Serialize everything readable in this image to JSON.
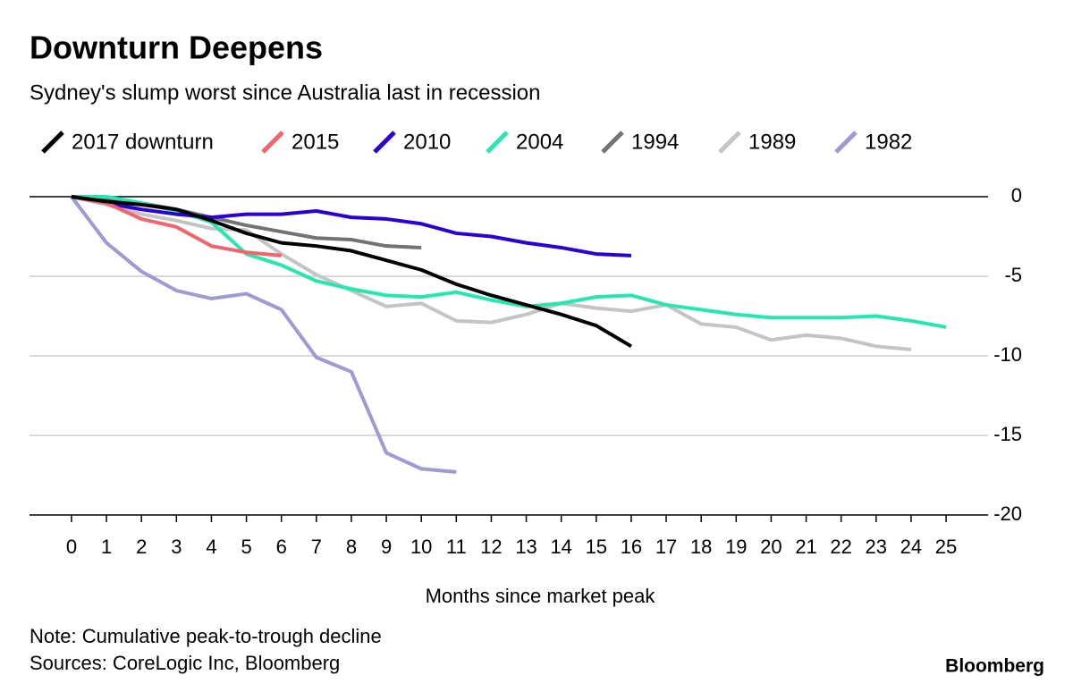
{
  "chart_data": {
    "type": "line",
    "title": "Downturn Deepens",
    "subtitle": "Sydney's slump worst since Australia last in recession",
    "x_label": "Months since market peak",
    "note": "Note: Cumulative peak-to-trough decline",
    "source": "Sources: CoreLogic Inc, Bloomberg",
    "brand": "Bloomberg",
    "x": [
      0,
      1,
      2,
      3,
      4,
      5,
      6,
      7,
      8,
      9,
      10,
      11,
      12,
      13,
      14,
      15,
      16,
      17,
      18,
      19,
      20,
      21,
      22,
      23,
      24,
      25
    ],
    "xlim": [
      -1.2,
      26.2
    ],
    "xticks": [
      0,
      1,
      2,
      3,
      4,
      5,
      6,
      7,
      8,
      9,
      10,
      11,
      12,
      13,
      14,
      15,
      16,
      17,
      18,
      19,
      20,
      21,
      22,
      23,
      24,
      25
    ],
    "ylim": [
      -20,
      0
    ],
    "yticks": [
      0,
      -5,
      -10,
      -15,
      -20
    ],
    "grid": true,
    "legend": "top-left",
    "series": [
      {
        "name": "2017 downturn",
        "color": "#000000",
        "values": [
          0,
          -0.3,
          -0.5,
          -0.8,
          -1.5,
          -2.3,
          -2.9,
          -3.1,
          -3.4,
          -4.0,
          -4.6,
          -5.5,
          -6.2,
          -6.8,
          -7.4,
          -8.1,
          -9.4,
          null,
          null,
          null,
          null,
          null,
          null,
          null,
          null,
          null
        ]
      },
      {
        "name": "2015",
        "color": "#f4626a",
        "values": [
          0,
          -0.4,
          -1.4,
          -1.9,
          -3.1,
          -3.5,
          -3.7,
          null,
          null,
          null,
          null,
          null,
          null,
          null,
          null,
          null,
          null,
          null,
          null,
          null,
          null,
          null,
          null,
          null,
          null,
          null
        ]
      },
      {
        "name": "2010",
        "color": "#2a00d6",
        "values": [
          0,
          -0.4,
          -0.8,
          -1.1,
          -1.3,
          -1.1,
          -1.1,
          -0.9,
          -1.3,
          -1.4,
          -1.7,
          -2.3,
          -2.5,
          -2.9,
          -3.2,
          -3.6,
          -3.7,
          null,
          null,
          null,
          null,
          null,
          null,
          null,
          null,
          null
        ]
      },
      {
        "name": "2004",
        "color": "#25e8b0",
        "values": [
          0,
          0,
          -0.4,
          -0.9,
          -1.6,
          -3.6,
          -4.3,
          -5.3,
          -5.8,
          -6.2,
          -6.3,
          -6.0,
          -6.5,
          -6.9,
          -6.7,
          -6.3,
          -6.2,
          -6.8,
          -7.1,
          -7.4,
          -7.6,
          -7.6,
          -7.6,
          -7.5,
          -7.8,
          -8.2
        ]
      },
      {
        "name": "1994",
        "color": "#737373",
        "values": [
          0,
          -0.2,
          -0.4,
          -0.8,
          -1.3,
          -1.8,
          -2.2,
          -2.6,
          -2.7,
          -3.1,
          -3.2,
          null,
          null,
          null,
          null,
          null,
          null,
          null,
          null,
          null,
          null,
          null,
          null,
          null,
          null,
          null
        ]
      },
      {
        "name": "1989",
        "color": "#c4c4c4",
        "values": [
          0,
          -0.5,
          -1.1,
          -1.5,
          -2.0,
          -2.1,
          -3.6,
          -4.9,
          -5.9,
          -6.9,
          -6.7,
          -7.8,
          -7.9,
          -7.4,
          -6.7,
          -7.0,
          -7.2,
          -6.8,
          -8.0,
          -8.2,
          -9.0,
          -8.7,
          -8.9,
          -9.4,
          -9.6,
          null
        ]
      },
      {
        "name": "1982",
        "color": "#9e9ad6",
        "values": [
          0,
          -2.9,
          -4.7,
          -5.9,
          -6.4,
          -6.1,
          -7.1,
          -10.1,
          -11.0,
          -16.1,
          -17.1,
          -17.3,
          null,
          null,
          null,
          null,
          null,
          null,
          null,
          null,
          null,
          null,
          null,
          null,
          null,
          null
        ]
      }
    ]
  }
}
